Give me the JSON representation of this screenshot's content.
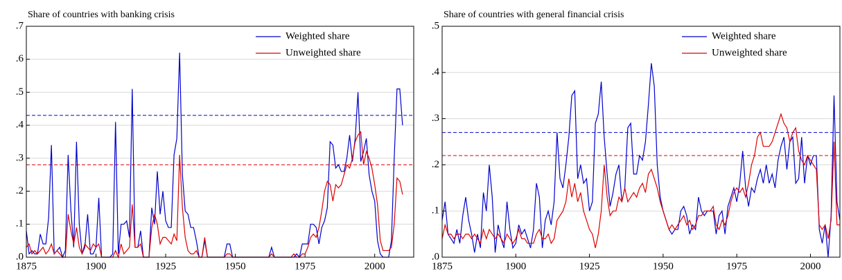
{
  "chart_data": [
    {
      "type": "line",
      "title": "Share of countries with banking crisis",
      "x": [
        1875,
        1876,
        1877,
        1878,
        1879,
        1880,
        1881,
        1882,
        1883,
        1884,
        1885,
        1886,
        1887,
        1888,
        1889,
        1890,
        1891,
        1892,
        1893,
        1894,
        1895,
        1896,
        1897,
        1898,
        1899,
        1900,
        1901,
        1902,
        1903,
        1904,
        1905,
        1906,
        1907,
        1908,
        1909,
        1910,
        1911,
        1912,
        1913,
        1914,
        1915,
        1916,
        1917,
        1918,
        1919,
        1920,
        1921,
        1922,
        1923,
        1924,
        1925,
        1926,
        1927,
        1928,
        1929,
        1930,
        1931,
        1932,
        1933,
        1934,
        1935,
        1936,
        1937,
        1938,
        1939,
        1940,
        1941,
        1942,
        1943,
        1944,
        1945,
        1946,
        1947,
        1948,
        1949,
        1950,
        1951,
        1952,
        1953,
        1954,
        1955,
        1956,
        1957,
        1958,
        1959,
        1960,
        1961,
        1962,
        1963,
        1964,
        1965,
        1966,
        1967,
        1968,
        1969,
        1970,
        1971,
        1972,
        1973,
        1974,
        1975,
        1976,
        1977,
        1978,
        1979,
        1980,
        1981,
        1982,
        1983,
        1984,
        1985,
        1986,
        1987,
        1988,
        1989,
        1990,
        1991,
        1992,
        1993,
        1994,
        1995,
        1996,
        1997,
        1998,
        1999,
        2000,
        2001,
        2002,
        2003,
        2004,
        2005,
        2006,
        2007,
        2008,
        2009,
        2010
      ],
      "series": [
        {
          "name": "Weighted share",
          "color": "#0000cc",
          "values": [
            0.08,
            0.01,
            0.02,
            0.01,
            0.01,
            0.07,
            0.04,
            0.04,
            0.12,
            0.34,
            0.01,
            0.02,
            0.03,
            0,
            0.02,
            0.31,
            0.14,
            0.03,
            0.35,
            0.1,
            0.01,
            0.03,
            0.13,
            0.01,
            0.01,
            0.03,
            0.18,
            0,
            0,
            0,
            0,
            0.01,
            0.41,
            0.01,
            0.1,
            0.1,
            0.11,
            0.06,
            0.51,
            0.03,
            0.03,
            0.08,
            0,
            0,
            0,
            0.15,
            0.1,
            0.26,
            0.13,
            0.2,
            0.11,
            0.09,
            0.09,
            0.31,
            0.36,
            0.62,
            0.25,
            0.14,
            0.13,
            0.09,
            0.09,
            0.05,
            0,
            0,
            0.05,
            0,
            0,
            0,
            0,
            0,
            0,
            0,
            0.04,
            0.04,
            0,
            0,
            0,
            0,
            0,
            0,
            0,
            0,
            0,
            0,
            0,
            0,
            0,
            0,
            0.03,
            0,
            0,
            0,
            0,
            0,
            0,
            0,
            0,
            0.01,
            0,
            0.04,
            0.04,
            0.04,
            0.1,
            0.1,
            0.09,
            0.04,
            0.09,
            0.11,
            0.15,
            0.35,
            0.34,
            0.27,
            0.28,
            0.26,
            0.26,
            0.3,
            0.37,
            0.29,
            0.36,
            0.5,
            0.29,
            0.32,
            0.36,
            0.25,
            0.2,
            0.17,
            0.05,
            0.01,
            0,
            0,
            0,
            0.05,
            0.3,
            0.51,
            0.51,
            0.4
          ]
        },
        {
          "name": "Unweighted share",
          "color": "#dd0000",
          "values": [
            0.03,
            0.04,
            0.01,
            0.02,
            0.01,
            0.02,
            0.03,
            0.01,
            0.02,
            0.04,
            0.01,
            0.02,
            0.01,
            0,
            0,
            0.13,
            0.08,
            0.04,
            0.09,
            0.03,
            0.01,
            0.04,
            0.03,
            0.02,
            0.04,
            0.03,
            0.04,
            0,
            0,
            0,
            0,
            0,
            0.02,
            0,
            0.04,
            0.01,
            0.02,
            0.03,
            0.16,
            0.03,
            0.03,
            0.04,
            0,
            0,
            0,
            0.09,
            0.13,
            0.1,
            0.04,
            0.06,
            0.06,
            0.05,
            0.04,
            0.07,
            0.05,
            0.31,
            0.15,
            0.06,
            0.02,
            0.01,
            0.01,
            0.02,
            0,
            0,
            0.06,
            0,
            0,
            0,
            0,
            0,
            0,
            0,
            0.01,
            0.01,
            0,
            0,
            0,
            0,
            0,
            0,
            0,
            0,
            0,
            0,
            0,
            0,
            0,
            0,
            0.01,
            0,
            0,
            0,
            0,
            0,
            0,
            0,
            0.01,
            0,
            0,
            0.01,
            0.01,
            0.03,
            0.06,
            0.07,
            0.06,
            0.09,
            0.14,
            0.2,
            0.23,
            0.22,
            0.17,
            0.22,
            0.21,
            0.22,
            0.25,
            0.28,
            0.27,
            0.3,
            0.35,
            0.37,
            0.38,
            0.28,
            0.32,
            0.3,
            0.27,
            0.22,
            0.16,
            0.05,
            0.02,
            0.02,
            0.02,
            0.03,
            0.1,
            0.24,
            0.23,
            0.19
          ]
        }
      ],
      "reference_lines": [
        {
          "value": 0.43,
          "color": "#0000cc"
        },
        {
          "value": 0.28,
          "color": "#dd0000"
        }
      ],
      "xlim": [
        1875,
        2014
      ],
      "xticks": [
        1875,
        1900,
        1925,
        1950,
        1975,
        2000
      ],
      "ylim": [
        0,
        0.7
      ],
      "yticks": [
        {
          "value": 0,
          "label": ".0"
        },
        {
          "value": 0.1,
          "label": ".1"
        },
        {
          "value": 0.2,
          "label": ".2"
        },
        {
          "value": 0.3,
          "label": ".3"
        },
        {
          "value": 0.4,
          "label": ".4"
        },
        {
          "value": 0.5,
          "label": ".5"
        },
        {
          "value": 0.6,
          "label": ".6"
        },
        {
          "value": 0.7,
          "label": ".7"
        }
      ],
      "grid": true,
      "legend": "top-right"
    },
    {
      "type": "line",
      "title": "Share of countries with general financial crisis",
      "x": [
        1875,
        1876,
        1877,
        1878,
        1879,
        1880,
        1881,
        1882,
        1883,
        1884,
        1885,
        1886,
        1887,
        1888,
        1889,
        1890,
        1891,
        1892,
        1893,
        1894,
        1895,
        1896,
        1897,
        1898,
        1899,
        1900,
        1901,
        1902,
        1903,
        1904,
        1905,
        1906,
        1907,
        1908,
        1909,
        1910,
        1911,
        1912,
        1913,
        1914,
        1915,
        1916,
        1917,
        1918,
        1919,
        1920,
        1921,
        1922,
        1923,
        1924,
        1925,
        1926,
        1927,
        1928,
        1929,
        1930,
        1931,
        1932,
        1933,
        1934,
        1935,
        1936,
        1937,
        1938,
        1939,
        1940,
        1941,
        1942,
        1943,
        1944,
        1945,
        1946,
        1947,
        1948,
        1949,
        1950,
        1951,
        1952,
        1953,
        1954,
        1955,
        1956,
        1957,
        1958,
        1959,
        1960,
        1961,
        1962,
        1963,
        1964,
        1965,
        1966,
        1967,
        1968,
        1969,
        1970,
        1971,
        1972,
        1973,
        1974,
        1975,
        1976,
        1977,
        1978,
        1979,
        1980,
        1981,
        1982,
        1983,
        1984,
        1985,
        1986,
        1987,
        1988,
        1989,
        1990,
        1991,
        1992,
        1993,
        1994,
        1995,
        1996,
        1997,
        1998,
        1999,
        2000,
        2001,
        2002,
        2003,
        2004,
        2005,
        2006,
        2007,
        2008,
        2009,
        2010
      ],
      "series": [
        {
          "name": "Weighted share",
          "color": "#0000cc",
          "values": [
            0.08,
            0.12,
            0.05,
            0.04,
            0.03,
            0.06,
            0.03,
            0.09,
            0.13,
            0.08,
            0.05,
            0.01,
            0.05,
            0.02,
            0.14,
            0.1,
            0.2,
            0.13,
            0.01,
            0.07,
            0.04,
            0.02,
            0.12,
            0.06,
            0.02,
            0.03,
            0.07,
            0.05,
            0.06,
            0.04,
            0.02,
            0.06,
            0.16,
            0.13,
            0.02,
            0.08,
            0.1,
            0.07,
            0.12,
            0.27,
            0.17,
            0.15,
            0.2,
            0.26,
            0.35,
            0.36,
            0.17,
            0.2,
            0.16,
            0.17,
            0.1,
            0.12,
            0.29,
            0.31,
            0.38,
            0.26,
            0.18,
            0.11,
            0.14,
            0.18,
            0.2,
            0.12,
            0.15,
            0.28,
            0.29,
            0.18,
            0.18,
            0.22,
            0.21,
            0.25,
            0.33,
            0.42,
            0.37,
            0.2,
            0.13,
            0.1,
            0.08,
            0.06,
            0.05,
            0.06,
            0.06,
            0.1,
            0.11,
            0.09,
            0.05,
            0.07,
            0.06,
            0.13,
            0.1,
            0.09,
            0.1,
            0.1,
            0.1,
            0.05,
            0.09,
            0.1,
            0.05,
            0.11,
            0.13,
            0.15,
            0.12,
            0.16,
            0.23,
            0.15,
            0.11,
            0.15,
            0.14,
            0.17,
            0.19,
            0.16,
            0.2,
            0.16,
            0.18,
            0.15,
            0.21,
            0.24,
            0.26,
            0.19,
            0.25,
            0.26,
            0.16,
            0.17,
            0.26,
            0.16,
            0.22,
            0.2,
            0.22,
            0.22,
            0.06,
            0.03,
            0.07,
            0,
            0.09,
            0.35,
            0.12,
            0.08
          ]
        },
        {
          "name": "Unweighted share",
          "color": "#dd0000",
          "values": [
            0.04,
            0.07,
            0.05,
            0.05,
            0.04,
            0.05,
            0.05,
            0.04,
            0.05,
            0.05,
            0.04,
            0.05,
            0.04,
            0.03,
            0.06,
            0.04,
            0.06,
            0.05,
            0.04,
            0.05,
            0.04,
            0.03,
            0.05,
            0.04,
            0.03,
            0.04,
            0.06,
            0.04,
            0.04,
            0.03,
            0.03,
            0.03,
            0.05,
            0.06,
            0.04,
            0.04,
            0.05,
            0.03,
            0.04,
            0.08,
            0.09,
            0.1,
            0.12,
            0.17,
            0.13,
            0.16,
            0.12,
            0.14,
            0.1,
            0.08,
            0.06,
            0.05,
            0.02,
            0.05,
            0.1,
            0.2,
            0.13,
            0.09,
            0.1,
            0.1,
            0.13,
            0.12,
            0.15,
            0.12,
            0.13,
            0.14,
            0.13,
            0.15,
            0.16,
            0.14,
            0.18,
            0.19,
            0.17,
            0.15,
            0.12,
            0.1,
            0.08,
            0.06,
            0.07,
            0.06,
            0.07,
            0.08,
            0.09,
            0.07,
            0.08,
            0.06,
            0.07,
            0.09,
            0.09,
            0.1,
            0.1,
            0.1,
            0.11,
            0.07,
            0.06,
            0.08,
            0.07,
            0.09,
            0.12,
            0.14,
            0.15,
            0.14,
            0.15,
            0.13,
            0.16,
            0.2,
            0.22,
            0.26,
            0.27,
            0.24,
            0.24,
            0.24,
            0.25,
            0.27,
            0.29,
            0.31,
            0.29,
            0.28,
            0.25,
            0.27,
            0.28,
            0.23,
            0.21,
            0.2,
            0.22,
            0.21,
            0.2,
            0.19,
            0.07,
            0.06,
            0.07,
            0.04,
            0.08,
            0.25,
            0.07,
            0.07
          ]
        }
      ],
      "reference_lines": [
        {
          "value": 0.27,
          "color": "#0000cc"
        },
        {
          "value": 0.22,
          "color": "#dd0000"
        }
      ],
      "xlim": [
        1875,
        2010
      ],
      "xticks": [
        1875,
        1900,
        1925,
        1950,
        1975,
        2000
      ],
      "ylim": [
        0,
        0.5
      ],
      "yticks": [
        {
          "value": 0,
          "label": ".0"
        },
        {
          "value": 0.1,
          "label": ".1"
        },
        {
          "value": 0.2,
          "label": ".2"
        },
        {
          "value": 0.3,
          "label": ".3"
        },
        {
          "value": 0.4,
          "label": ".4"
        },
        {
          "value": 0.5,
          "label": ".5"
        }
      ],
      "grid": true,
      "legend": "top-right"
    }
  ]
}
